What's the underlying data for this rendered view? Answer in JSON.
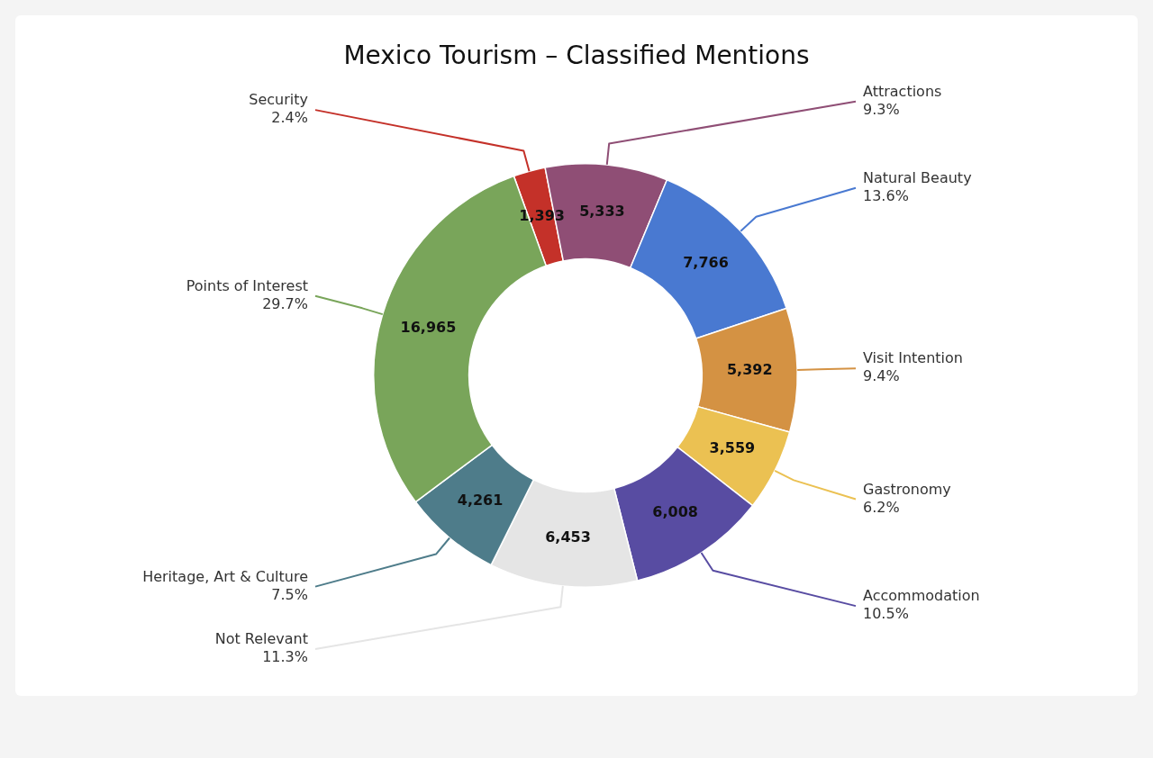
{
  "chart_data": {
    "type": "donut",
    "title": "Mexico Tourism – Classified Mentions",
    "categories": [
      "Security",
      "Attractions",
      "Natural Beauty",
      "Visit Intention",
      "Gastronomy",
      "Accommodation",
      "Not Relevant",
      "Heritage, Art & Culture",
      "Points of Interest"
    ],
    "values": [
      1393,
      5333,
      7766,
      5392,
      3559,
      6008,
      6453,
      4261,
      16965
    ],
    "colors": [
      "#c43129",
      "#8f4e75",
      "#4979d1",
      "#d49243",
      "#ebc152",
      "#584ca2",
      "#e5e5e5",
      "#4e7c8a",
      "#79a55a"
    ],
    "value_labels": [
      "1,393",
      "5,333",
      "7,766",
      "5,392",
      "3,559",
      "6,008",
      "6,453",
      "4,261",
      "16,965"
    ],
    "annotations": [
      "2.4%",
      "9.3%",
      "13.6%",
      "9.4%",
      "6.2%",
      "10.5%",
      "11.3%",
      "7.5%",
      "29.7%"
    ]
  }
}
